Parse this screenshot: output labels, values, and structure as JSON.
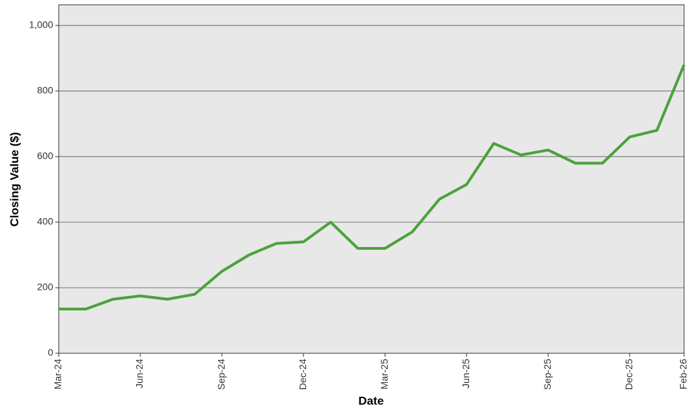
{
  "chart_data": {
    "type": "line",
    "x_label": "Date",
    "y_label": "Closing Value ($)",
    "x": [
      "2024-03",
      "2024-04",
      "2024-05",
      "2024-06",
      "2024-07",
      "2024-08",
      "2024-09",
      "2024-10",
      "2024-11",
      "2024-12",
      "2025-01",
      "2025-02",
      "2025-03",
      "2025-04",
      "2025-05",
      "2025-06",
      "2025-07",
      "2025-08",
      "2025-09",
      "2025-10",
      "2025-11",
      "2025-12",
      "2026-01",
      "2026-02"
    ],
    "series": [
      {
        "name": "Closing Value",
        "color": "#4aa33a",
        "values": [
          135,
          135,
          165,
          175,
          165,
          180,
          250,
          300,
          335,
          340,
          400,
          320,
          320,
          370,
          470,
          515,
          640,
          605,
          620,
          580,
          580,
          660,
          680,
          880
        ]
      }
    ],
    "xlim": [
      "2024-03",
      "2026-02"
    ],
    "xticks": [
      {
        "value": "2024-03",
        "label": "Mar-24"
      },
      {
        "value": "2024-06",
        "label": "Jun-24"
      },
      {
        "value": "2024-09",
        "label": "Sep-24"
      },
      {
        "value": "2024-12",
        "label": "Dec-24"
      },
      {
        "value": "2025-03",
        "label": "Mar-25"
      },
      {
        "value": "2025-06",
        "label": "Jun-25"
      },
      {
        "value": "2025-09",
        "label": "Sep-25"
      },
      {
        "value": "2025-12",
        "label": "Dec-25"
      },
      {
        "value": "2026-02",
        "label": "Feb-26"
      }
    ],
    "ylim": [
      0,
      1063
    ],
    "yticks": [
      0,
      200,
      400,
      600,
      800,
      {
        "value": 1000,
        "label": "1,000"
      }
    ],
    "grid": true
  }
}
